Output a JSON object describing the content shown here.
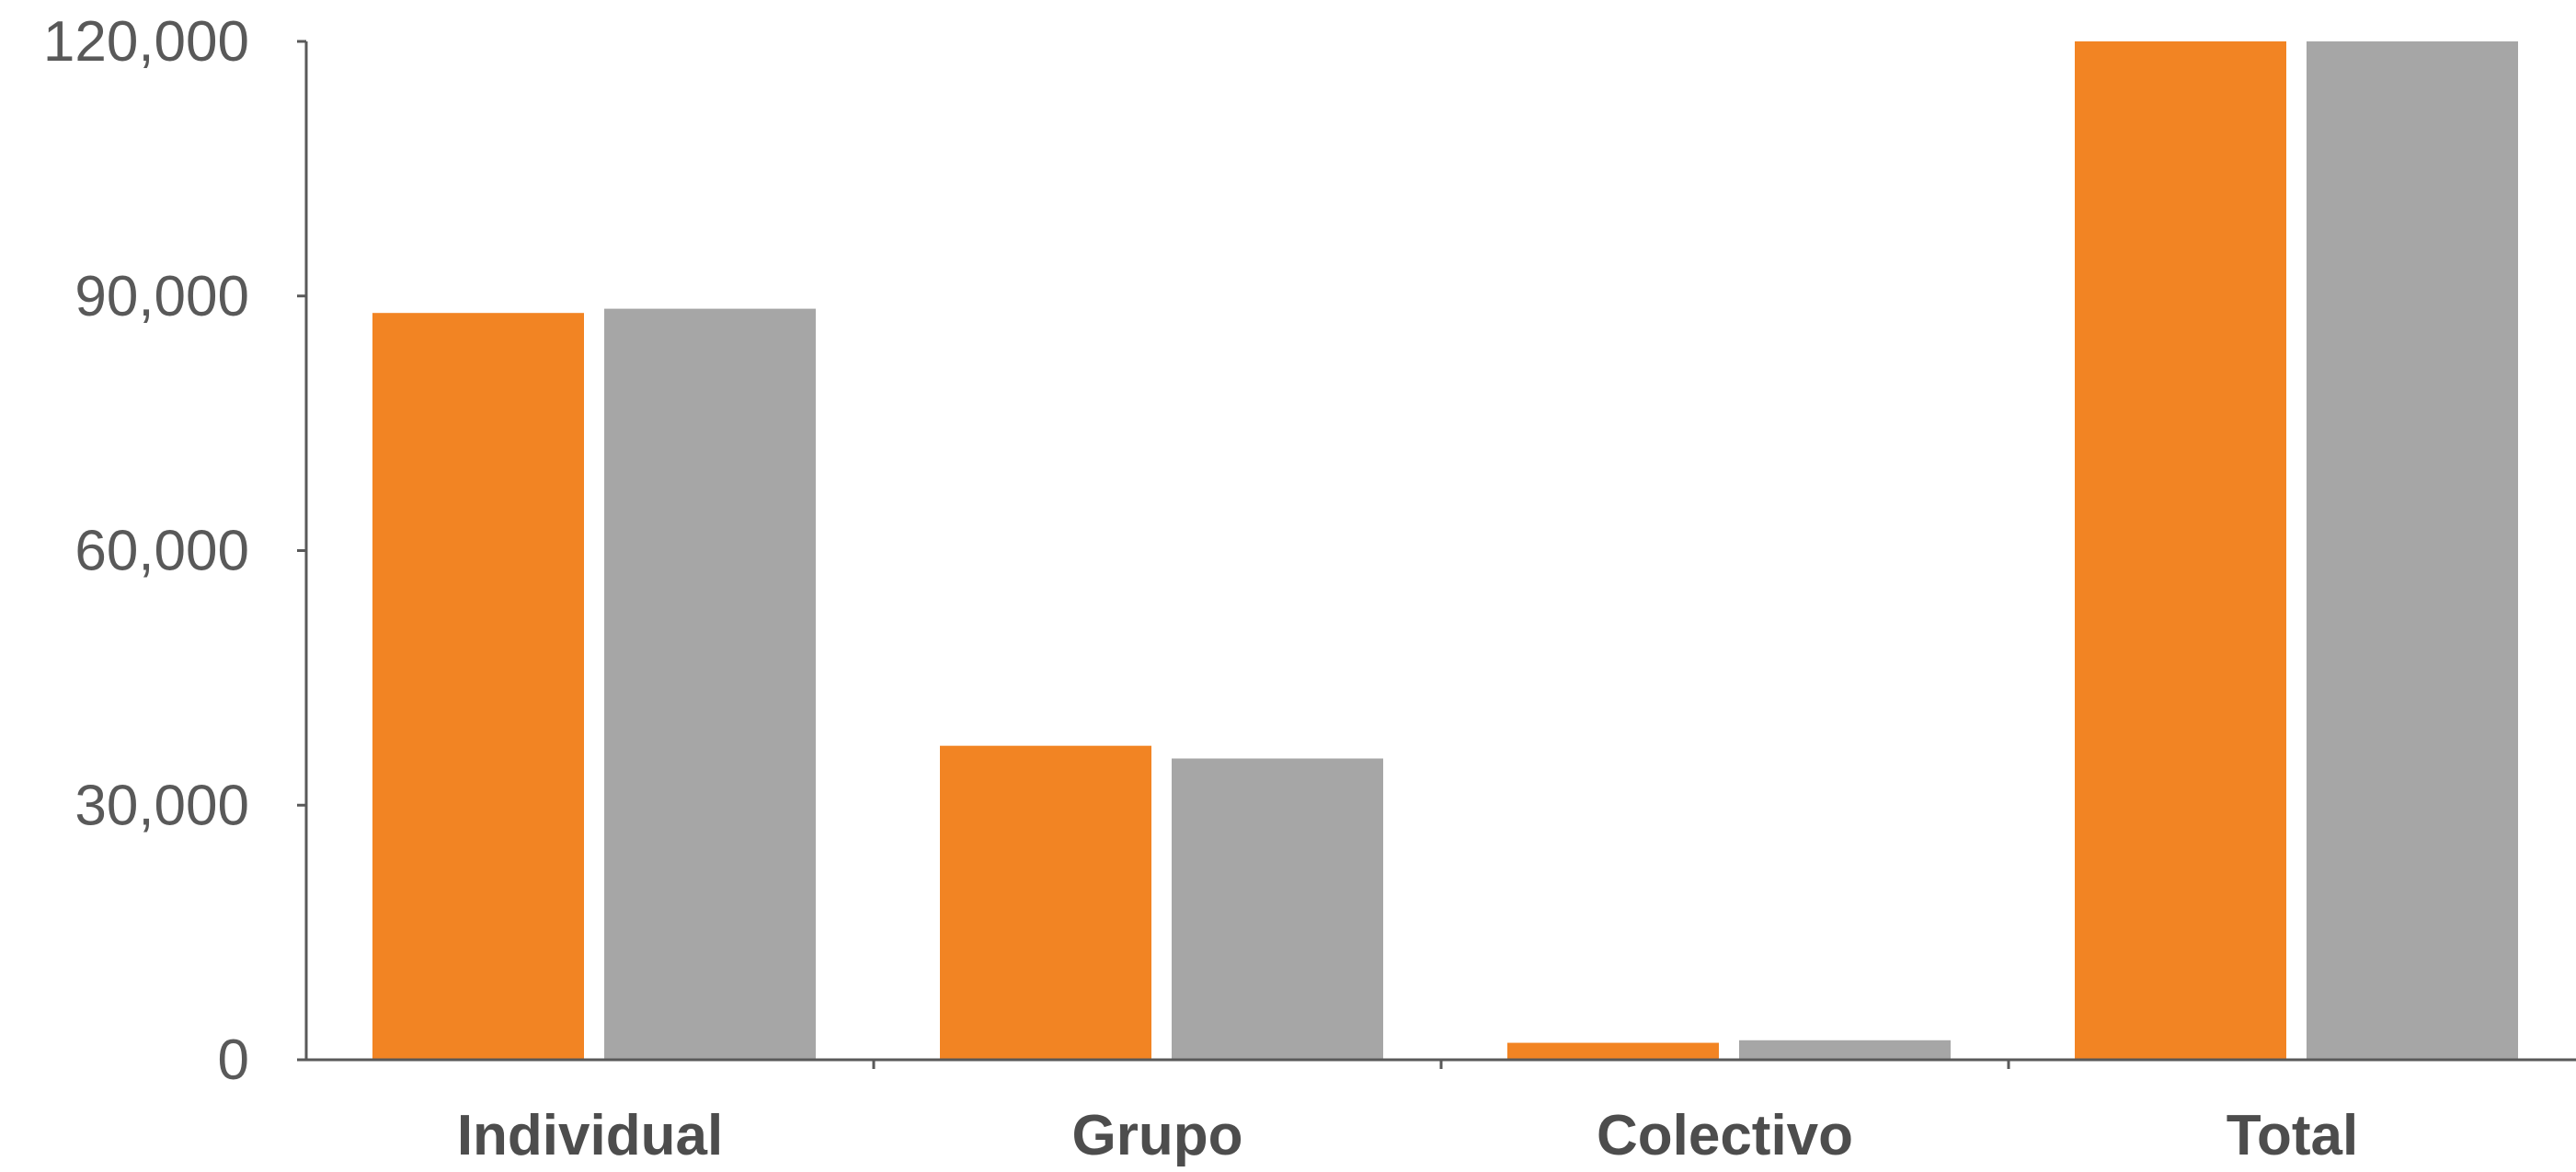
{
  "chart_data": {
    "type": "bar",
    "categories": [
      "Individual",
      "Grupo",
      "Colectivo",
      "Total"
    ],
    "series": [
      {
        "values": [
          88000,
          37000,
          2000,
          120000
        ]
      },
      {
        "values": [
          88500,
          35500,
          2300,
          120000
        ]
      }
    ],
    "colors": [
      "#F28423",
      "#A6A6A6"
    ],
    "ylim": [
      0,
      120000
    ],
    "y_ticks": [
      0,
      30000,
      60000,
      90000,
      120000
    ],
    "y_tick_labels": [
      "0",
      "30,000",
      "60,000",
      "90,000",
      "120,000"
    ],
    "grid": false,
    "legend": "none"
  }
}
